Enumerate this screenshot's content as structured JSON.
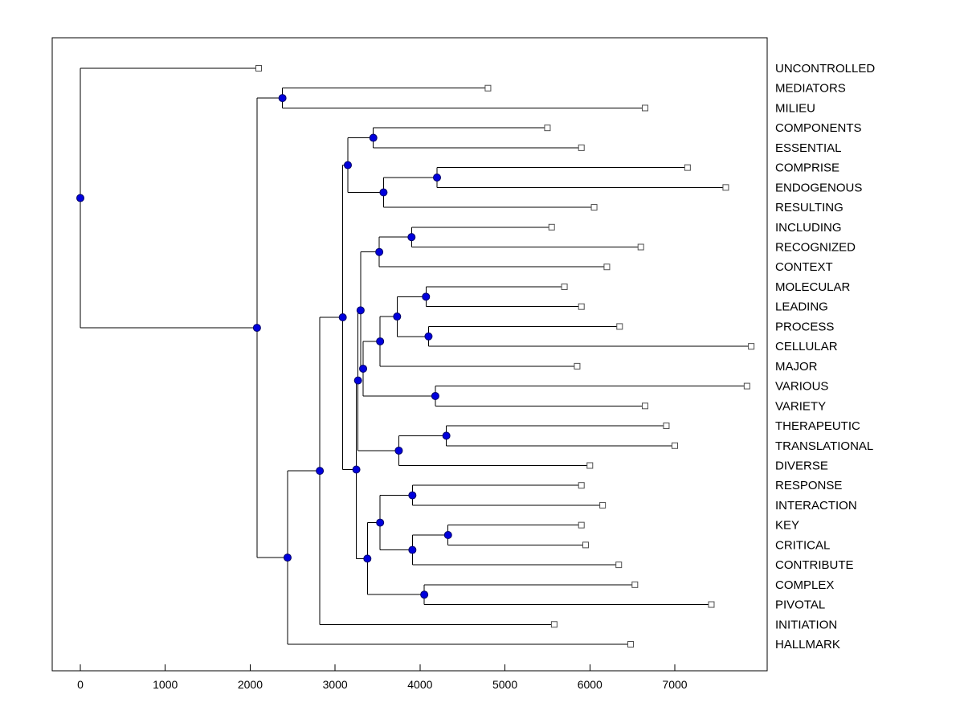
{
  "figure": {
    "background": "#ffffff"
  },
  "style": {
    "line_color": "#000000",
    "border_color": "#000000",
    "node_fill": "#0000dd",
    "node_stroke": "#000066",
    "leaf_marker_fill": "#ffffff",
    "leaf_marker_stroke": "#4d4d4d",
    "text_color": "#000000"
  },
  "chart_data": {
    "type": "dendrogram",
    "orientation": "horizontal-root-left-leaves-right",
    "title": "",
    "xlabel": "",
    "ylabel": "",
    "grid": false,
    "legend": "none",
    "x_ticks": [
      0,
      1000,
      2000,
      3000,
      4000,
      5000,
      6000,
      7000
    ],
    "x_range": [
      -330,
      8090
    ],
    "internal_marker": "filled-circle",
    "leaf_marker": "open-square",
    "leaf_labels": [
      "UNCONTROLLED",
      "MEDIATORS",
      "MILIEU",
      "COMPONENTS",
      "ESSENTIAL",
      "COMPRISE",
      "ENDOGENOUS",
      "RESULTING",
      "INCLUDING",
      "RECOGNIZED",
      "CONTEXT",
      "MOLECULAR",
      "LEADING",
      "PROCESS",
      "CELLULAR",
      "MAJOR",
      "VARIOUS",
      "VARIETY",
      "THERAPEUTIC",
      "TRANSLATIONAL",
      "DIVERSE",
      "RESPONSE",
      "INTERACTION",
      "KEY",
      "CRITICAL",
      "CONTRIBUTE",
      "COMPLEX",
      "PIVOTAL",
      "INITIATION",
      "HALLMARK"
    ],
    "tree": {
      "v": 0,
      "c": [
        {
          "leaf": "UNCONTROLLED",
          "v": 2100
        },
        {
          "v": 2080,
          "c": [
            {
              "v": 2380,
              "c": [
                {
                  "leaf": "MEDIATORS",
                  "v": 4800
                },
                {
                  "leaf": "MILIEU",
                  "v": 6650
                }
              ]
            },
            {
              "v": 2440,
              "c": [
                {
                  "v": 2820,
                  "c": [
                    {
                      "v": 3090,
                      "c": [
                        {
                          "v": 3150,
                          "c": [
                            {
                              "v": 3450,
                              "c": [
                                {
                                  "leaf": "COMPONENTS",
                                  "v": 5500
                                },
                                {
                                  "leaf": "ESSENTIAL",
                                  "v": 5900
                                }
                              ]
                            },
                            {
                              "v": 3570,
                              "c": [
                                {
                                  "v": 4200,
                                  "c": [
                                    {
                                      "leaf": "COMPRISE",
                                      "v": 7150
                                    },
                                    {
                                      "leaf": "ENDOGENOUS",
                                      "v": 7600
                                    }
                                  ]
                                },
                                {
                                  "leaf": "RESULTING",
                                  "v": 6050
                                }
                              ]
                            }
                          ]
                        },
                        {
                          "v": 3250,
                          "c": [
                            {
                              "v": 3270,
                              "c": [
                                {
                                  "v": 3300,
                                  "c": [
                                    {
                                      "v": 3520,
                                      "c": [
                                        {
                                          "v": 3900,
                                          "c": [
                                            {
                                              "leaf": "INCLUDING",
                                              "v": 5550
                                            },
                                            {
                                              "leaf": "RECOGNIZED",
                                              "v": 6600
                                            }
                                          ]
                                        },
                                        {
                                          "leaf": "CONTEXT",
                                          "v": 6200
                                        }
                                      ]
                                    },
                                    {
                                      "v": 3330,
                                      "c": [
                                        {
                                          "v": 3530,
                                          "c": [
                                            {
                                              "v": 3730,
                                              "c": [
                                                {
                                                  "v": 4070,
                                                  "c": [
                                                    {
                                                      "leaf": "MOLECULAR",
                                                      "v": 5700
                                                    },
                                                    {
                                                      "leaf": "LEADING",
                                                      "v": 5900
                                                    }
                                                  ]
                                                },
                                                {
                                                  "v": 4100,
                                                  "c": [
                                                    {
                                                      "leaf": "PROCESS",
                                                      "v": 6350
                                                    },
                                                    {
                                                      "leaf": "CELLULAR",
                                                      "v": 7900
                                                    }
                                                  ]
                                                }
                                              ]
                                            },
                                            {
                                              "leaf": "MAJOR",
                                              "v": 5850
                                            }
                                          ]
                                        },
                                        {
                                          "v": 4180,
                                          "c": [
                                            {
                                              "leaf": "VARIOUS",
                                              "v": 7850
                                            },
                                            {
                                              "leaf": "VARIETY",
                                              "v": 6650
                                            }
                                          ]
                                        }
                                      ]
                                    }
                                  ]
                                },
                                {
                                  "v": 3750,
                                  "c": [
                                    {
                                      "v": 4310,
                                      "c": [
                                        {
                                          "leaf": "THERAPEUTIC",
                                          "v": 6900
                                        },
                                        {
                                          "leaf": "TRANSLATIONAL",
                                          "v": 7000
                                        }
                                      ]
                                    },
                                    {
                                      "leaf": "DIVERSE",
                                      "v": 6000
                                    }
                                  ]
                                }
                              ]
                            },
                            {
                              "v": 3380,
                              "c": [
                                {
                                  "v": 3530,
                                  "c": [
                                    {
                                      "v": 3910,
                                      "c": [
                                        {
                                          "leaf": "RESPONSE",
                                          "v": 5900
                                        },
                                        {
                                          "leaf": "INTERACTION",
                                          "v": 6150
                                        }
                                      ]
                                    },
                                    {
                                      "v": 3910,
                                      "c": [
                                        {
                                          "v": 4330,
                                          "c": [
                                            {
                                              "leaf": "KEY",
                                              "v": 5900
                                            },
                                            {
                                              "leaf": "CRITICAL",
                                              "v": 5950
                                            }
                                          ]
                                        },
                                        {
                                          "leaf": "CONTRIBUTE",
                                          "v": 6340
                                        }
                                      ]
                                    }
                                  ]
                                },
                                {
                                  "v": 4050,
                                  "c": [
                                    {
                                      "leaf": "COMPLEX",
                                      "v": 6530
                                    },
                                    {
                                      "leaf": "PIVOTAL",
                                      "v": 7430
                                    }
                                  ]
                                }
                              ]
                            }
                          ]
                        }
                      ]
                    },
                    {
                      "leaf": "INITIATION",
                      "v": 5580
                    }
                  ]
                },
                {
                  "leaf": "HALLMARK",
                  "v": 6480
                }
              ]
            }
          ]
        }
      ]
    }
  }
}
